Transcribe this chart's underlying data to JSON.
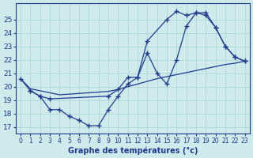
{
  "color": "#1f3a8f",
  "bg_color": "#ceeaea",
  "grid_color": "#a8d4d4",
  "xlabel": "Graphe des températures (°c)",
  "xlim": [
    -0.5,
    23.5
  ],
  "ylim": [
    16.5,
    26.2
  ],
  "yticks": [
    17,
    18,
    19,
    20,
    21,
    22,
    23,
    24,
    25
  ],
  "xticks": [
    0,
    1,
    2,
    3,
    4,
    5,
    6,
    7,
    8,
    9,
    10,
    11,
    12,
    13,
    14,
    15,
    16,
    17,
    18,
    19,
    20,
    21,
    22,
    23
  ],
  "line_straight_x": [
    0,
    1,
    2,
    3,
    4,
    5,
    6,
    7,
    8,
    9,
    10,
    11,
    12,
    13,
    14,
    15,
    16,
    17,
    18,
    19,
    20,
    21,
    22,
    23
  ],
  "line_straight_y": [
    20.6,
    19.85,
    19.7,
    19.55,
    19.4,
    19.45,
    19.5,
    19.55,
    19.6,
    19.65,
    19.8,
    20.0,
    20.2,
    20.4,
    20.6,
    20.75,
    20.9,
    21.05,
    21.2,
    21.35,
    21.5,
    21.65,
    21.75,
    21.9
  ],
  "line_upper_x": [
    0,
    1,
    2,
    3,
    9,
    10,
    11,
    12,
    13,
    15,
    16,
    17,
    18,
    19,
    20,
    21,
    22,
    23
  ],
  "line_upper_y": [
    20.6,
    19.7,
    19.3,
    19.1,
    19.3,
    19.8,
    20.7,
    20.7,
    23.4,
    25.0,
    25.6,
    25.3,
    25.5,
    25.5,
    24.4,
    23.0,
    22.2,
    21.9
  ],
  "line_lower_x": [
    1,
    2,
    3,
    4,
    5,
    6,
    7,
    8,
    9,
    10,
    11,
    12,
    13,
    14,
    15,
    16,
    17,
    18,
    19,
    20,
    21,
    22,
    23
  ],
  "line_lower_y": [
    19.7,
    19.3,
    18.3,
    18.3,
    17.8,
    17.5,
    17.1,
    17.1,
    18.3,
    19.3,
    20.2,
    20.7,
    22.5,
    21.0,
    20.2,
    22.0,
    24.5,
    25.5,
    25.3,
    24.4,
    23.0,
    22.2,
    21.9
  ]
}
